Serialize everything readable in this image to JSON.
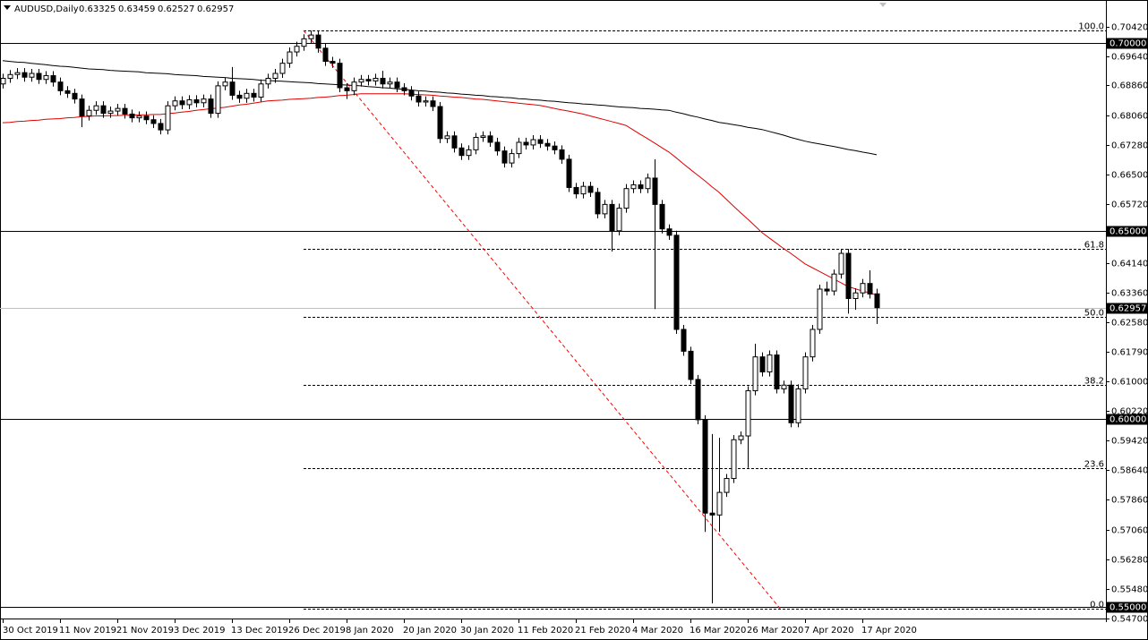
{
  "chart_data": {
    "type": "candlestick",
    "title": "AUDUSD,Daily",
    "categories": [
      "30 Oct 2019",
      null,
      null,
      null,
      null,
      null,
      null,
      null,
      "11 Nov 2019",
      null,
      null,
      null,
      null,
      null,
      null,
      null,
      "21 Nov 2019",
      null,
      null,
      null,
      null,
      null,
      null,
      null,
      "3 Dec 2019",
      null,
      null,
      null,
      null,
      null,
      null,
      null,
      "13 Dec 2019",
      null,
      null,
      null,
      null,
      null,
      null,
      null,
      "26 Dec 2019",
      null,
      null,
      null,
      null,
      null,
      null,
      null,
      "8 Jan 2020",
      null,
      null,
      null,
      null,
      null,
      null,
      null,
      "20 Jan 2020",
      null,
      null,
      null,
      null,
      null,
      null,
      null,
      "30 Jan 2020",
      null,
      null,
      null,
      null,
      null,
      null,
      null,
      "11 Feb 2020",
      null,
      null,
      null,
      null,
      null,
      null,
      null,
      "21 Feb 2020",
      null,
      null,
      null,
      null,
      null,
      null,
      null,
      "4 Mar 2020",
      null,
      null,
      null,
      null,
      null,
      null,
      null,
      "16 Mar 2020",
      null,
      null,
      null,
      null,
      null,
      null,
      null,
      "26 Mar 2020",
      null,
      null,
      null,
      null,
      null,
      null,
      null,
      "7 Apr 2020",
      null,
      null,
      null,
      null,
      null,
      null,
      null,
      "17 Apr 2020",
      null,
      null
    ],
    "candles": {
      "open": [
        0.689,
        0.6905,
        0.6915,
        0.692,
        0.6908,
        0.6918,
        0.6902,
        0.6912,
        0.6895,
        0.6872,
        0.6865,
        0.685,
        0.6805,
        0.682,
        0.6832,
        0.6812,
        0.6818,
        0.6825,
        0.681,
        0.68,
        0.6805,
        0.6795,
        0.6785,
        0.6768,
        0.6832,
        0.6845,
        0.6835,
        0.6848,
        0.684,
        0.685,
        0.6812,
        0.6885,
        0.6895,
        0.686,
        0.6852,
        0.6865,
        0.6855,
        0.689,
        0.6905,
        0.6918,
        0.6945,
        0.6975,
        0.699,
        0.701,
        0.702,
        0.6985,
        0.695,
        0.6945,
        0.688,
        0.6872,
        0.6895,
        0.6902,
        0.6898,
        0.6905,
        0.689,
        0.6895,
        0.688,
        0.6872,
        0.6858,
        0.6842,
        0.6845,
        0.683,
        0.6745,
        0.6752,
        0.672,
        0.67,
        0.6715,
        0.6748,
        0.6752,
        0.6735,
        0.6712,
        0.668,
        0.6705,
        0.6735,
        0.6728,
        0.6742,
        0.6732,
        0.6725,
        0.6715,
        0.669,
        0.6615,
        0.6598,
        0.6618,
        0.6602,
        0.6545,
        0.657,
        0.65,
        0.656,
        0.6612,
        0.6622,
        0.6612,
        0.664,
        0.657,
        0.6505,
        0.6488,
        0.6238,
        0.618,
        0.6105,
        0.5998,
        0.575,
        0.5745,
        0.5805,
        0.5842,
        0.5945,
        0.5955,
        0.6075,
        0.6165,
        0.6125,
        0.617,
        0.608,
        0.609,
        0.599,
        0.608,
        0.6165,
        0.6238,
        0.6345,
        0.634,
        0.6385,
        0.644,
        0.632,
        0.6335,
        0.636,
        0.63325
      ],
      "high": [
        0.6917,
        0.6927,
        0.6932,
        0.6932,
        0.693,
        0.693,
        0.6924,
        0.6924,
        0.6907,
        0.6884,
        0.6877,
        0.6862,
        0.6832,
        0.6844,
        0.6844,
        0.683,
        0.6837,
        0.6837,
        0.6822,
        0.6817,
        0.6817,
        0.6807,
        0.6797,
        0.6844,
        0.6857,
        0.6857,
        0.686,
        0.686,
        0.6862,
        0.6862,
        0.6897,
        0.6907,
        0.6935,
        0.6872,
        0.6877,
        0.6877,
        0.6902,
        0.6917,
        0.693,
        0.6957,
        0.6987,
        0.7002,
        0.7022,
        0.7032,
        0.7032,
        0.6997,
        0.6962,
        0.6957,
        0.6892,
        0.6907,
        0.6914,
        0.6914,
        0.6917,
        0.6925,
        0.6907,
        0.6907,
        0.6892,
        0.6884,
        0.687,
        0.6857,
        0.6857,
        0.6842,
        0.6764,
        0.6764,
        0.6732,
        0.6727,
        0.676,
        0.6764,
        0.6764,
        0.6747,
        0.6724,
        0.6717,
        0.6747,
        0.6747,
        0.6754,
        0.6754,
        0.6744,
        0.6737,
        0.6727,
        0.6702,
        0.6627,
        0.663,
        0.663,
        0.6614,
        0.6582,
        0.6582,
        0.6572,
        0.6624,
        0.6634,
        0.6634,
        0.6652,
        0.669,
        0.6582,
        0.6517,
        0.65,
        0.625,
        0.6192,
        0.6117,
        0.601,
        0.596,
        0.595,
        0.5854,
        0.5957,
        0.5967,
        0.6087,
        0.62,
        0.6177,
        0.6182,
        0.6182,
        0.6102,
        0.6102,
        0.6092,
        0.6177,
        0.625,
        0.6357,
        0.6365,
        0.6397,
        0.645,
        0.6452,
        0.6347,
        0.6372,
        0.6395,
        0.63459
      ],
      "low": [
        0.6878,
        0.6893,
        0.6903,
        0.6896,
        0.6896,
        0.689,
        0.689,
        0.6883,
        0.686,
        0.6853,
        0.6838,
        0.6775,
        0.6793,
        0.6808,
        0.68,
        0.68,
        0.6806,
        0.6798,
        0.6788,
        0.6788,
        0.6783,
        0.6773,
        0.6756,
        0.6756,
        0.682,
        0.6823,
        0.6823,
        0.6828,
        0.6828,
        0.68,
        0.68,
        0.6873,
        0.6848,
        0.684,
        0.684,
        0.6843,
        0.6843,
        0.6878,
        0.6893,
        0.6906,
        0.6933,
        0.6963,
        0.6978,
        0.6998,
        0.6973,
        0.6938,
        0.6933,
        0.6868,
        0.685,
        0.686,
        0.6883,
        0.6886,
        0.6886,
        0.6878,
        0.6878,
        0.6868,
        0.686,
        0.6846,
        0.683,
        0.683,
        0.6818,
        0.6733,
        0.6733,
        0.6708,
        0.6688,
        0.6688,
        0.6703,
        0.6736,
        0.6723,
        0.67,
        0.6668,
        0.6668,
        0.6693,
        0.6716,
        0.6716,
        0.672,
        0.6713,
        0.6703,
        0.6678,
        0.6603,
        0.6586,
        0.6586,
        0.659,
        0.6533,
        0.6533,
        0.6445,
        0.6488,
        0.6548,
        0.66,
        0.66,
        0.66,
        0.6292,
        0.6493,
        0.6476,
        0.6226,
        0.6168,
        0.6093,
        0.5986,
        0.57,
        0.551,
        0.57,
        0.5793,
        0.583,
        0.5933,
        0.587,
        0.6063,
        0.6113,
        0.6113,
        0.6068,
        0.6068,
        0.5978,
        0.5978,
        0.6068,
        0.6153,
        0.6226,
        0.6328,
        0.6328,
        0.6373,
        0.628,
        0.629,
        0.6323,
        0.632,
        0.62527
      ],
      "close": [
        0.6905,
        0.6915,
        0.692,
        0.6908,
        0.6918,
        0.6902,
        0.6912,
        0.6895,
        0.6872,
        0.6865,
        0.685,
        0.6805,
        0.682,
        0.6832,
        0.6812,
        0.6818,
        0.6825,
        0.681,
        0.68,
        0.6805,
        0.6795,
        0.6785,
        0.6768,
        0.6832,
        0.6845,
        0.6835,
        0.6848,
        0.684,
        0.685,
        0.6812,
        0.6885,
        0.6895,
        0.686,
        0.6852,
        0.6865,
        0.6855,
        0.689,
        0.6905,
        0.6918,
        0.6945,
        0.6975,
        0.699,
        0.701,
        0.702,
        0.6985,
        0.695,
        0.6945,
        0.688,
        0.6872,
        0.6895,
        0.6902,
        0.6898,
        0.6905,
        0.689,
        0.6895,
        0.688,
        0.6872,
        0.6858,
        0.6842,
        0.6845,
        0.683,
        0.6745,
        0.6752,
        0.672,
        0.67,
        0.6715,
        0.6748,
        0.6752,
        0.6735,
        0.6712,
        0.668,
        0.6705,
        0.6735,
        0.6728,
        0.6742,
        0.6732,
        0.6725,
        0.6715,
        0.669,
        0.6615,
        0.6598,
        0.6618,
        0.6602,
        0.6545,
        0.657,
        0.65,
        0.656,
        0.6612,
        0.6622,
        0.6612,
        0.664,
        0.657,
        0.6505,
        0.6488,
        0.6238,
        0.618,
        0.6105,
        0.5998,
        0.575,
        0.5745,
        0.5805,
        0.5842,
        0.5945,
        0.5955,
        0.6075,
        0.6165,
        0.6125,
        0.617,
        0.608,
        0.609,
        0.599,
        0.608,
        0.6165,
        0.6238,
        0.6345,
        0.634,
        0.6385,
        0.644,
        0.632,
        0.6335,
        0.636,
        0.6332,
        0.62957
      ]
    },
    "series": [
      {
        "color": "#e00000",
        "values": [
          0.6787,
          0.6788,
          0.679,
          0.6791,
          0.6793,
          0.6794,
          0.6796,
          0.6797,
          0.6798,
          0.68,
          0.6801,
          0.6803,
          0.6804,
          0.6805,
          0.6805,
          0.6806,
          0.6806,
          0.6807,
          0.6807,
          0.6808,
          0.6808,
          0.6809,
          0.6809,
          0.6811,
          0.6813,
          0.6815,
          0.6817,
          0.682,
          0.6822,
          0.6824,
          0.6826,
          0.6828,
          0.6831,
          0.6834,
          0.6836,
          0.6839,
          0.6842,
          0.6845,
          0.6846,
          0.6847,
          0.6849,
          0.685,
          0.6851,
          0.6852,
          0.6854,
          0.6855,
          0.6857,
          0.6859,
          0.686,
          0.6862,
          0.6864,
          0.6864,
          0.6864,
          0.6864,
          0.6864,
          0.6864,
          0.6864,
          0.6863,
          0.6862,
          0.6861,
          0.686,
          0.6858,
          0.6857,
          0.6855,
          0.6854,
          0.6852,
          0.685,
          0.6849,
          0.6847,
          0.6845,
          0.6843,
          0.6841,
          0.6839,
          0.6837,
          0.6835,
          0.6833,
          0.6829,
          0.6825,
          0.6821,
          0.6818,
          0.6814,
          0.681,
          0.6805,
          0.68,
          0.6795,
          0.679,
          0.6785,
          0.678,
          0.6768,
          0.6756,
          0.6745,
          0.6733,
          0.6721,
          0.6709,
          0.6694,
          0.6678,
          0.6663,
          0.6648,
          0.6633,
          0.6617,
          0.6602,
          0.6584,
          0.6566,
          0.6548,
          0.6531,
          0.6513,
          0.6495,
          0.6481,
          0.6467,
          0.6453,
          0.644,
          0.6426,
          0.6412,
          0.6402,
          0.6392,
          0.6382,
          0.6372,
          0.6362,
          0.6352,
          0.6346,
          0.634,
          0.6335,
          0.6329
        ]
      },
      {
        "color": "#000000",
        "values": [
          0.6952,
          0.695,
          0.6948,
          0.6947,
          0.6945,
          0.6943,
          0.6941,
          0.6939,
          0.6937,
          0.6936,
          0.6934,
          0.6932,
          0.693,
          0.6929,
          0.6928,
          0.6926,
          0.6925,
          0.6924,
          0.6923,
          0.6922,
          0.692,
          0.6919,
          0.6918,
          0.6917,
          0.6915,
          0.6914,
          0.6913,
          0.6912,
          0.691,
          0.6909,
          0.6908,
          0.6907,
          0.6905,
          0.6904,
          0.6903,
          0.6902,
          0.69,
          0.6899,
          0.6898,
          0.6897,
          0.6896,
          0.6895,
          0.6894,
          0.6893,
          0.6891,
          0.689,
          0.6889,
          0.6888,
          0.6887,
          0.6886,
          0.6885,
          0.6883,
          0.6882,
          0.688,
          0.6879,
          0.6877,
          0.6876,
          0.6874,
          0.6872,
          0.6871,
          0.6869,
          0.6868,
          0.6866,
          0.6865,
          0.6863,
          0.6862,
          0.686,
          0.6859,
          0.6857,
          0.6856,
          0.6854,
          0.6853,
          0.6851,
          0.685,
          0.6848,
          0.6847,
          0.6845,
          0.6844,
          0.6842,
          0.684,
          0.6839,
          0.6837,
          0.6836,
          0.6834,
          0.6833,
          0.6831,
          0.6829,
          0.6828,
          0.6827,
          0.6825,
          0.6824,
          0.6823,
          0.6821,
          0.682,
          0.6815,
          0.6811,
          0.6806,
          0.6802,
          0.6797,
          0.6793,
          0.6788,
          0.6785,
          0.6782,
          0.6779,
          0.6775,
          0.6772,
          0.6769,
          0.6764,
          0.6759,
          0.6754,
          0.6748,
          0.6743,
          0.6738,
          0.6734,
          0.6731,
          0.6727,
          0.6724,
          0.672,
          0.6716,
          0.6713,
          0.6709,
          0.6706,
          0.6702
        ]
      }
    ],
    "ylim": [
      0.547,
      0.7113
    ],
    "yticks": [
      {
        "value": 0.7042,
        "label": "0.70420"
      },
      {
        "value": 0.6964,
        "label": "0.69640"
      },
      {
        "value": 0.6886,
        "label": "0.68860"
      },
      {
        "value": 0.6806,
        "label": "0.68060"
      },
      {
        "value": 0.6728,
        "label": "0.67280"
      },
      {
        "value": 0.665,
        "label": "0.66500"
      },
      {
        "value": 0.6572,
        "label": "0.65720"
      },
      {
        "value": 0.6414,
        "label": "0.64140"
      },
      {
        "value": 0.6336,
        "label": "0.63360"
      },
      {
        "value": 0.6258,
        "label": "0.62580"
      },
      {
        "value": 0.6179,
        "label": "0.61790"
      },
      {
        "value": 0.61,
        "label": "0.61000"
      },
      {
        "value": 0.6022,
        "label": "0.60220"
      },
      {
        "value": 0.5942,
        "label": "0.59420"
      },
      {
        "value": 0.5864,
        "label": "0.58640"
      },
      {
        "value": 0.5786,
        "label": "0.57860"
      },
      {
        "value": 0.5706,
        "label": "0.57060"
      },
      {
        "value": 0.5628,
        "label": "0.56280"
      },
      {
        "value": 0.5548,
        "label": "0.55480"
      },
      {
        "value": 0.547,
        "label": "0.54700"
      }
    ],
    "levels": [
      {
        "value": 0.7,
        "label": "0.70000"
      },
      {
        "value": 0.65,
        "label": "0.65000"
      },
      {
        "value": 0.6,
        "label": "0.60000"
      },
      {
        "value": 0.55,
        "label": "0.55000"
      }
    ],
    "fibonacci": {
      "color": "#ff0000",
      "levels": [
        {
          "value": 0.7032,
          "label": "100.0"
        },
        {
          "value": 0.6451,
          "label": "61.8"
        },
        {
          "value": 0.6271,
          "label": "50.0"
        },
        {
          "value": 0.6091,
          "label": "38.2"
        },
        {
          "value": 0.5869,
          "label": "23.6"
        },
        {
          "value": 0.5497,
          "label": "0.0"
        }
      ],
      "anchors": [
        {
          "category_index": 42,
          "price": 0.7032
        },
        {
          "category_index": 108.5,
          "price": 0.5497
        }
      ]
    }
  }
}
